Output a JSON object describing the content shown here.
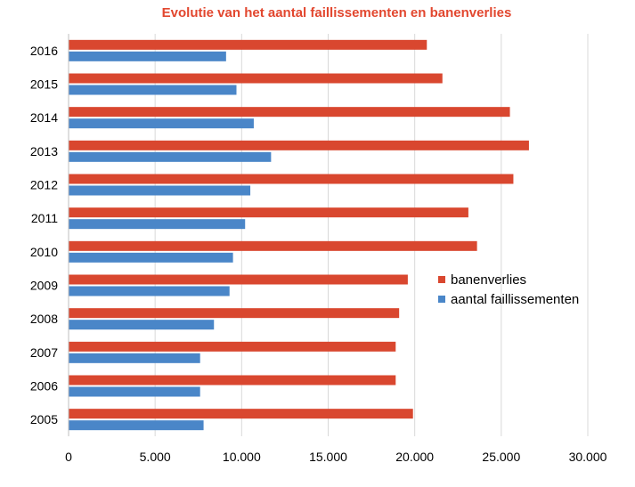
{
  "chart_data": {
    "type": "bar",
    "orientation": "horizontal",
    "title": "Evolutie van het aantal faillissementen en banenverlies",
    "title_color": "#e2472f",
    "categories": [
      "2016",
      "2015",
      "2014",
      "2013",
      "2012",
      "2011",
      "2010",
      "2009",
      "2008",
      "2007",
      "2006",
      "2005"
    ],
    "series": [
      {
        "name": "banenverlies",
        "color": "#d9472f",
        "values": [
          20700,
          21600,
          25500,
          26600,
          25700,
          23100,
          23600,
          19600,
          19100,
          18900,
          18900,
          19900
        ]
      },
      {
        "name": "aantal faillissementen",
        "color": "#4a86c8",
        "values": [
          9100,
          9700,
          10700,
          11700,
          10500,
          10200,
          9500,
          9300,
          8400,
          7600,
          7600,
          7800
        ]
      }
    ],
    "xlim": [
      0,
      30000
    ],
    "x_ticks": [
      0,
      5000,
      10000,
      15000,
      20000,
      25000,
      30000
    ],
    "x_tick_labels": [
      "0",
      "5.000",
      "10.000",
      "15.000",
      "20.000",
      "25.000",
      "30.000"
    ],
    "grid": true,
    "grid_direction": "vertical",
    "grid_color": "#d9d9d9",
    "legend_position": "right"
  }
}
